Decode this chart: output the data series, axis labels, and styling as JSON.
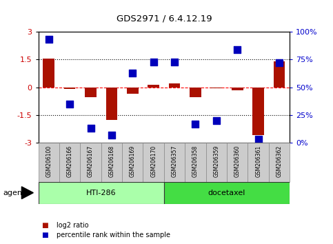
{
  "title": "GDS2971 / 6.4.12.19",
  "samples": [
    "GSM206100",
    "GSM206166",
    "GSM206167",
    "GSM206168",
    "GSM206169",
    "GSM206170",
    "GSM206357",
    "GSM206358",
    "GSM206359",
    "GSM206360",
    "GSM206361",
    "GSM206362"
  ],
  "log2_ratio": [
    1.55,
    -0.1,
    -0.55,
    -1.75,
    -0.35,
    0.15,
    0.2,
    -0.55,
    -0.05,
    -0.15,
    -2.6,
    1.4
  ],
  "percentile": [
    93,
    35,
    13,
    7,
    63,
    73,
    73,
    17,
    20,
    84,
    3,
    72
  ],
  "groups": [
    {
      "label": "HTI-286",
      "start": 0,
      "end": 6,
      "color": "#AAFFAA"
    },
    {
      "label": "docetaxel",
      "start": 6,
      "end": 12,
      "color": "#44DD44"
    }
  ],
  "ylim": [
    -3,
    3
  ],
  "right_ylim": [
    0,
    100
  ],
  "right_yticks": [
    0,
    25,
    50,
    75,
    100
  ],
  "right_yticklabels": [
    "0%",
    "25%",
    "50%",
    "75%",
    "100%"
  ],
  "left_yticks": [
    -3,
    -1.5,
    0,
    1.5,
    3
  ],
  "left_yticklabels": [
    "-3",
    "-1.5",
    "0",
    "1.5",
    "3"
  ],
  "hline_y": 0,
  "dotted_lines": [
    -1.5,
    1.5
  ],
  "bar_color": "#AA1100",
  "dot_color": "#0000BB",
  "bar_width": 0.55,
  "dot_size": 45,
  "legend_bar_label": "log2 ratio",
  "legend_dot_label": "percentile rank within the sample",
  "agent_label": "agent",
  "background_color": "#ffffff",
  "plot_bg_color": "#ffffff",
  "tick_label_area_color": "#CCCCCC",
  "left_ytick_color": "#CC0000",
  "right_ytick_color": "#0000CC"
}
